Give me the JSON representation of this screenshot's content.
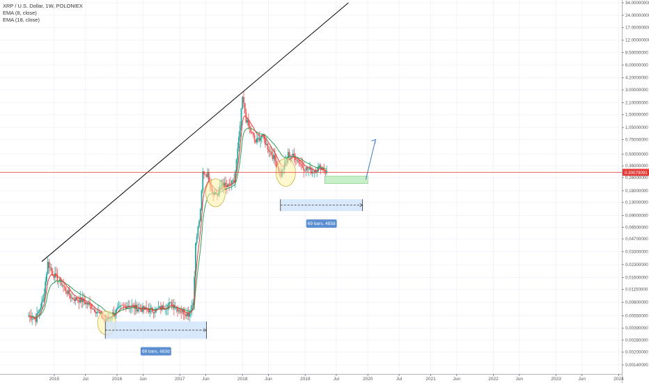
{
  "legend": {
    "title": "XRP / U.S. Dollar, 1W, POLONIEX",
    "ema_fast": "EMA (8, close)",
    "ema_slow": "EMA (18, close)"
  },
  "colors": {
    "up": "#26a69a",
    "down": "#ef5350",
    "ema_fast": "#e53935",
    "ema_slow": "#2e9e55",
    "price_line": "#e53935",
    "price_badge": "#e53935",
    "range_fill": "#cfe3fb",
    "range_label": "#5b8fd1",
    "ellipse_fill": "#fff2a8",
    "target_fill": "#c8f0c8",
    "arrow": "#3a78c2",
    "trend_line": "#000000",
    "grid": "#f0f3fa"
  },
  "price_badge": "0.30079091",
  "ranges": [
    {
      "label": "69 bars, 483d",
      "start": "2015-10-25",
      "end": "2017-06-05",
      "low": 0.0029,
      "high": 0.0047
    },
    {
      "label": "69 bars, 483d",
      "start": "2018-08-10",
      "end": "2019-12-01",
      "low": 0.102,
      "high": 0.142
    }
  ],
  "chart_data": {
    "type": "candlestick",
    "y_scale": "log",
    "y_ticks": [
      "34.00000000",
      "24.00000000",
      "17.00000000",
      "12.00000000",
      "8.50000000",
      "6.00000000",
      "4.20000000",
      "3.00000000",
      "2.10000000",
      "1.50000000",
      "1.05000000",
      "0.75000000",
      "0.50000000",
      "0.36000000",
      "0.26000000",
      "0.18000000",
      "0.13000000",
      "0.09000000",
      "0.06500000",
      "0.04700000",
      "0.03300000",
      "0.02300000",
      "0.01600000",
      "0.01150000",
      "0.00800000",
      "0.00550000",
      "0.00390000",
      "0.00280000",
      "0.00200000",
      "0.00140000"
    ],
    "x_ticks": [
      {
        "label": "2015",
        "date": "2015-01-01"
      },
      {
        "label": "Jul",
        "date": "2015-07-01"
      },
      {
        "label": "2016",
        "date": "2016-01-01"
      },
      {
        "label": "Jun",
        "date": "2016-06-01"
      },
      {
        "label": "2017",
        "date": "2017-01-01"
      },
      {
        "label": "Jun",
        "date": "2017-06-01"
      },
      {
        "label": "2018",
        "date": "2018-01-01"
      },
      {
        "label": "Jun",
        "date": "2018-06-01"
      },
      {
        "label": "2019",
        "date": "2019-01-01"
      },
      {
        "label": "Jul",
        "date": "2019-07-01"
      },
      {
        "label": "2020",
        "date": "2020-01-01"
      },
      {
        "label": "Jul",
        "date": "2020-07-01"
      },
      {
        "label": "2021",
        "date": "2021-01-01"
      },
      {
        "label": "Jun",
        "date": "2021-06-01"
      },
      {
        "label": "2022",
        "date": "2022-01-01"
      },
      {
        "label": "Jun",
        "date": "2022-06-01"
      },
      {
        "label": "2023",
        "date": "2023-01-01"
      },
      {
        "label": "Jun",
        "date": "2023-06-01"
      },
      {
        "label": "2024",
        "date": "2024-01-01"
      }
    ],
    "price_path": [
      {
        "date": "2014-08-04",
        "close": 0.0055
      },
      {
        "date": "2014-09-15",
        "close": 0.005
      },
      {
        "date": "2014-10-27",
        "close": 0.0085
      },
      {
        "date": "2014-11-24",
        "close": 0.024
      },
      {
        "date": "2014-12-22",
        "close": 0.018
      },
      {
        "date": "2015-02-16",
        "close": 0.013
      },
      {
        "date": "2015-04-13",
        "close": 0.009
      },
      {
        "date": "2015-06-08",
        "close": 0.0085
      },
      {
        "date": "2015-07-20",
        "close": 0.0075
      },
      {
        "date": "2015-09-07",
        "close": 0.0062
      },
      {
        "date": "2015-10-26",
        "close": 0.0047
      },
      {
        "date": "2015-12-07",
        "close": 0.0058
      },
      {
        "date": "2016-01-18",
        "close": 0.0068
      },
      {
        "date": "2016-03-07",
        "close": 0.0075
      },
      {
        "date": "2016-04-25",
        "close": 0.0068
      },
      {
        "date": "2016-06-13",
        "close": 0.0065
      },
      {
        "date": "2016-08-08",
        "close": 0.0064
      },
      {
        "date": "2016-09-26",
        "close": 0.007
      },
      {
        "date": "2016-11-14",
        "close": 0.0077
      },
      {
        "date": "2017-01-02",
        "close": 0.0064
      },
      {
        "date": "2017-02-20",
        "close": 0.0058
      },
      {
        "date": "2017-03-20",
        "close": 0.008
      },
      {
        "date": "2017-04-03",
        "close": 0.04
      },
      {
        "date": "2017-05-01",
        "close": 0.1
      },
      {
        "date": "2017-05-15",
        "close": 0.3
      },
      {
        "date": "2017-06-12",
        "close": 0.28
      },
      {
        "date": "2017-07-10",
        "close": 0.18
      },
      {
        "date": "2017-08-07",
        "close": 0.16
      },
      {
        "date": "2017-09-04",
        "close": 0.22
      },
      {
        "date": "2017-10-02",
        "close": 0.2
      },
      {
        "date": "2017-11-13",
        "close": 0.23
      },
      {
        "date": "2017-12-11",
        "close": 0.75
      },
      {
        "date": "2018-01-01",
        "close": 2.4
      },
      {
        "date": "2018-01-22",
        "close": 1.3
      },
      {
        "date": "2018-02-12",
        "close": 1.0
      },
      {
        "date": "2018-03-19",
        "close": 0.7
      },
      {
        "date": "2018-04-23",
        "close": 0.85
      },
      {
        "date": "2018-05-28",
        "close": 0.6
      },
      {
        "date": "2018-07-02",
        "close": 0.45
      },
      {
        "date": "2018-08-13",
        "close": 0.28
      },
      {
        "date": "2018-09-24",
        "close": 0.5
      },
      {
        "date": "2018-11-12",
        "close": 0.45
      },
      {
        "date": "2018-12-17",
        "close": 0.35
      },
      {
        "date": "2019-02-11",
        "close": 0.31
      },
      {
        "date": "2019-04-01",
        "close": 0.35
      },
      {
        "date": "2019-05-06",
        "close": 0.3008
      }
    ]
  }
}
